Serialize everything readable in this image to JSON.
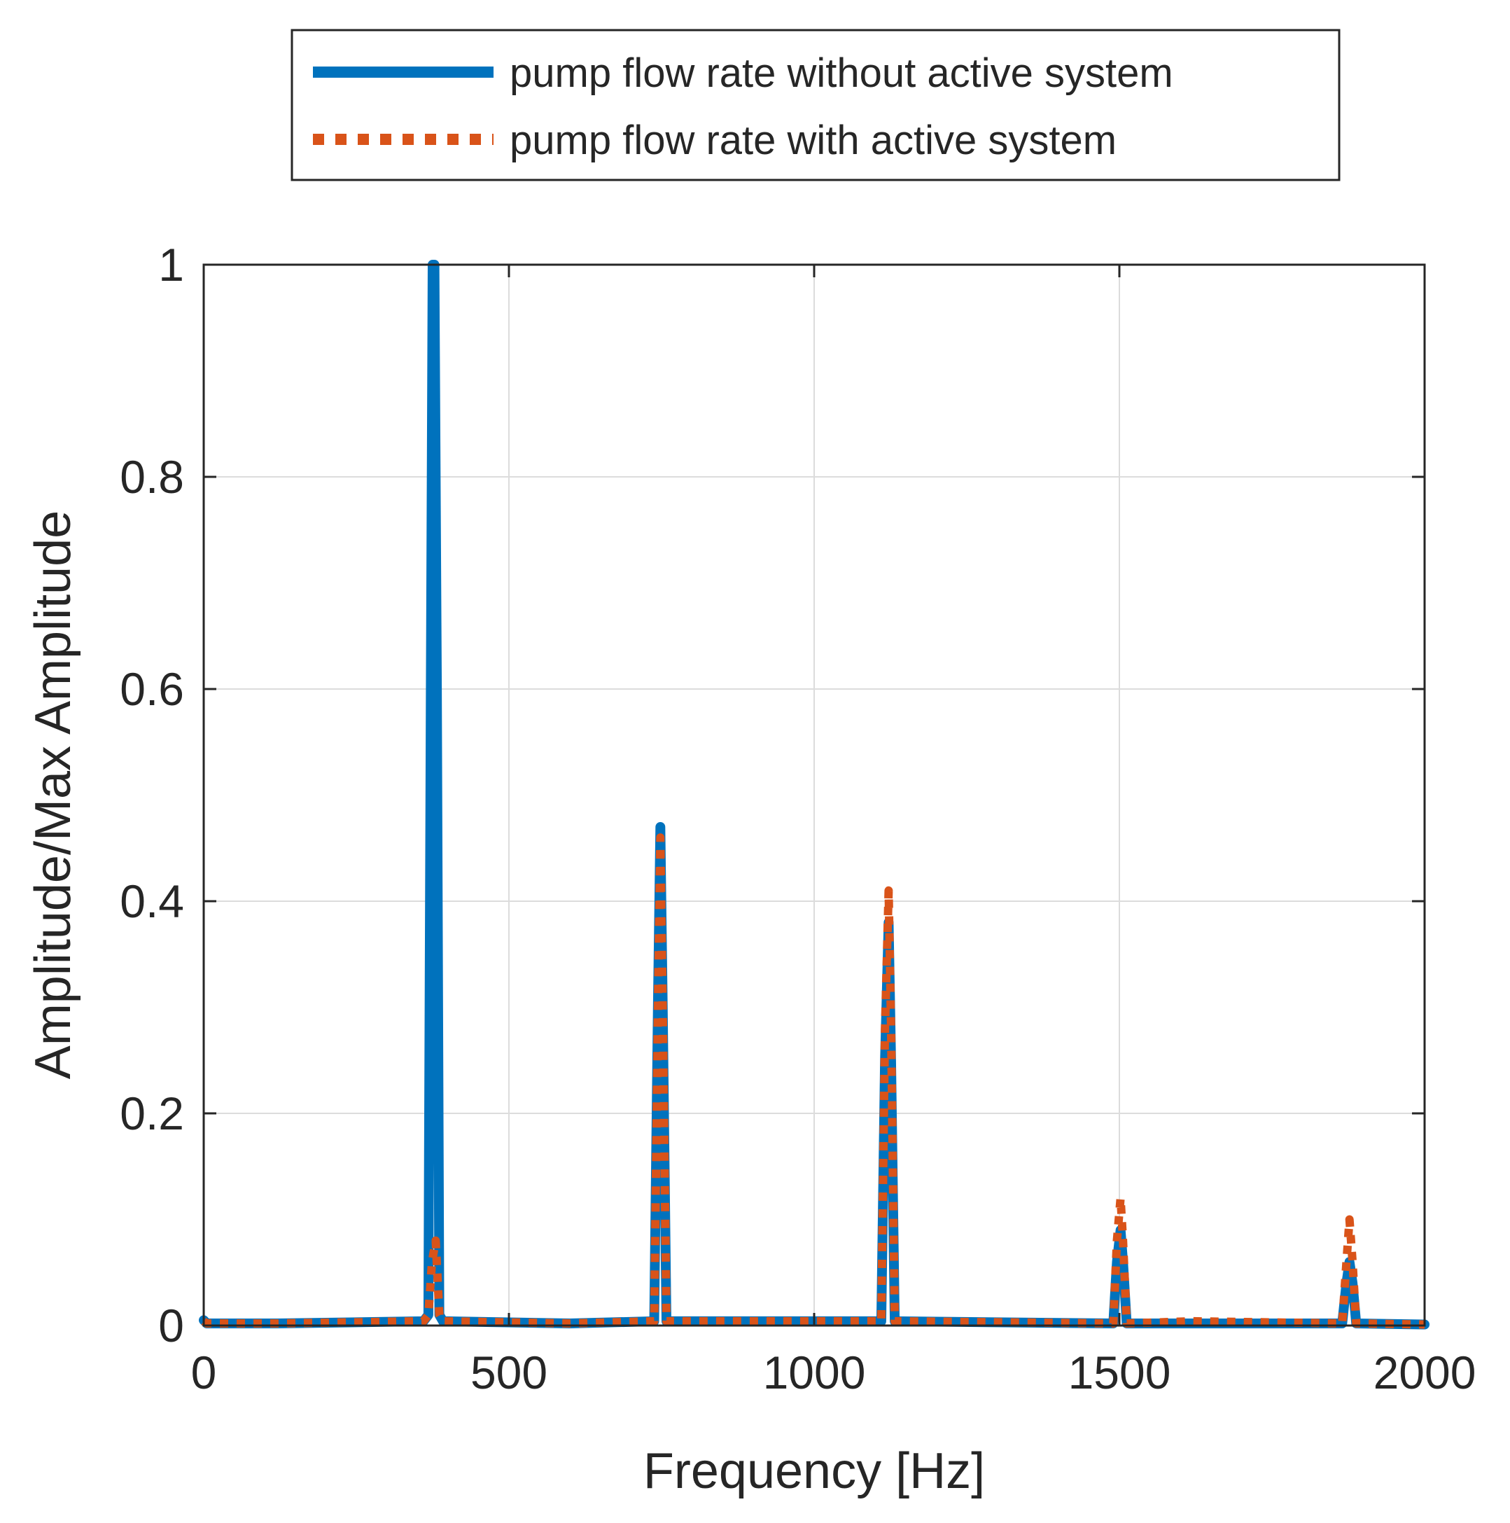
{
  "chart_data": {
    "type": "line",
    "title": "",
    "xlabel": "Frequency [Hz]",
    "ylabel": "Amplitude/Max Amplitude",
    "xlim": [
      0,
      2000
    ],
    "ylim": [
      0,
      1
    ],
    "xticks": [
      0,
      500,
      1000,
      1500,
      2000
    ],
    "xtick_labels": [
      "0",
      "500",
      "1000",
      "1500",
      "2000"
    ],
    "yticks": [
      0,
      0.2,
      0.4,
      0.6,
      0.8,
      1
    ],
    "ytick_labels": [
      "0",
      "0.2",
      "0.4",
      "0.6",
      "0.8",
      "1"
    ],
    "grid": true,
    "legend_position": "top-center-outside",
    "series": [
      {
        "name": "pump flow rate without active system",
        "color": "#0072BD",
        "style": "solid",
        "x": [
          0,
          5,
          120,
          360,
          368,
          372,
          375,
          378,
          382,
          386,
          392,
          600,
          738,
          744,
          748,
          752,
          758,
          1110,
          1116,
          1122,
          1126,
          1132,
          1490,
          1496,
          1502,
          1506,
          1512,
          1865,
          1872,
          1877,
          1882,
          1888,
          2000
        ],
        "y": [
          0.005,
          0.002,
          0.002,
          0.004,
          0.01,
          0.6,
          1.0,
          1.0,
          0.6,
          0.01,
          0.004,
          0.002,
          0.004,
          0.3,
          0.47,
          0.3,
          0.004,
          0.004,
          0.25,
          0.38,
          0.25,
          0.004,
          0.002,
          0.06,
          0.09,
          0.06,
          0.002,
          0.002,
          0.04,
          0.06,
          0.04,
          0.002,
          0.001
        ]
      },
      {
        "name": "pump flow rate with active system",
        "color": "#D95319",
        "style": "dotted",
        "x": [
          0,
          5,
          120,
          360,
          368,
          374,
          380,
          386,
          392,
          600,
          738,
          744,
          748,
          752,
          758,
          1110,
          1116,
          1122,
          1126,
          1132,
          1490,
          1496,
          1502,
          1506,
          1512,
          1620,
          1865,
          1872,
          1877,
          1882,
          1888,
          2000
        ],
        "y": [
          0.004,
          0.002,
          0.002,
          0.004,
          0.01,
          0.06,
          0.08,
          0.01,
          0.004,
          0.002,
          0.004,
          0.3,
          0.46,
          0.3,
          0.004,
          0.004,
          0.28,
          0.41,
          0.28,
          0.004,
          0.002,
          0.08,
          0.12,
          0.08,
          0.002,
          0.004,
          0.002,
          0.06,
          0.1,
          0.06,
          0.002,
          0.001
        ]
      }
    ]
  }
}
